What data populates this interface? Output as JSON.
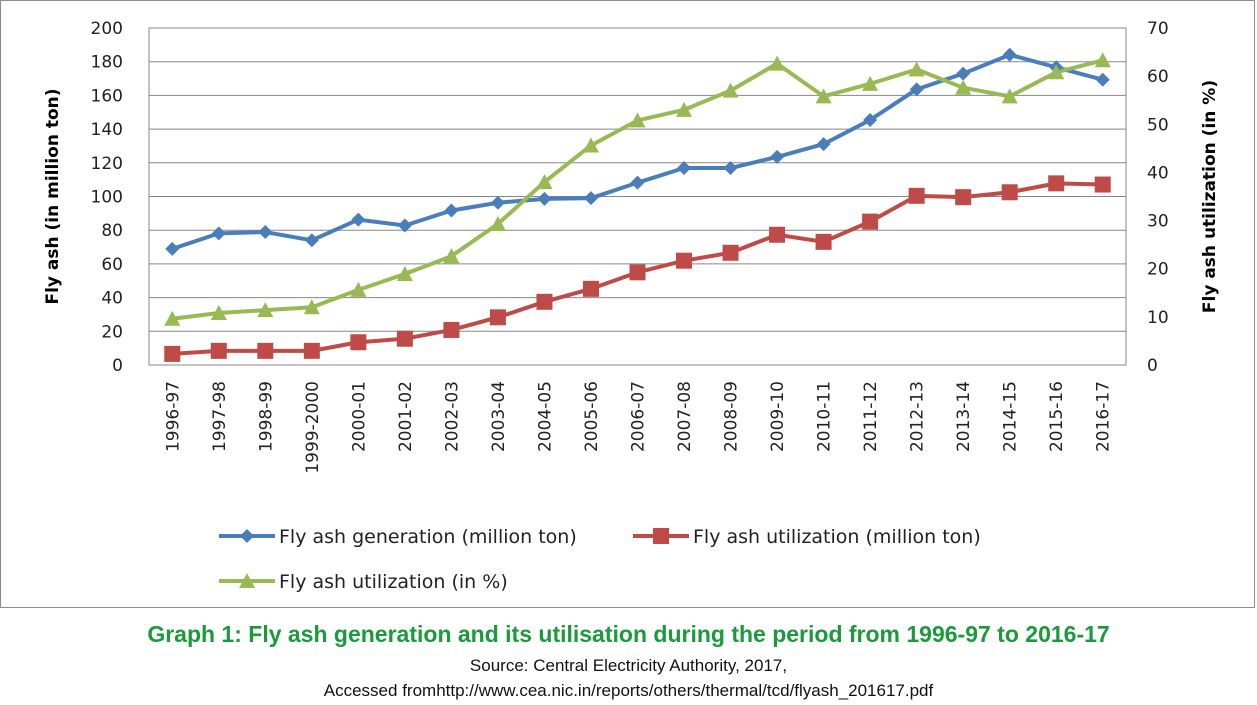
{
  "chart_data": {
    "type": "line",
    "title": "",
    "xlabel": "",
    "ylabel": "Fly ash (in million ton)",
    "y2label": "Fly ash utilization (in %)",
    "ylim": [
      0,
      200
    ],
    "y2lim": [
      0,
      70
    ],
    "yticks": [
      "0",
      "20",
      "40",
      "60",
      "80",
      "100",
      "120",
      "140",
      "160",
      "180",
      "200"
    ],
    "y2ticks": [
      "0",
      "10",
      "20",
      "30",
      "40",
      "50",
      "60",
      "70"
    ],
    "grid": true,
    "legend_position": "bottom",
    "categories": [
      "1996-97",
      "1997-98",
      "1998-99",
      "1999-2000",
      "2000-01",
      "2001-02",
      "2002-03",
      "2003-04",
      "2004-05",
      "2005-06",
      "2006-07",
      "2007-08",
      "2008-09",
      "2009-10",
      "2010-11",
      "2011-12",
      "2012-13",
      "2013-14",
      "2014-15",
      "2015-16",
      "2016-17"
    ],
    "series": [
      {
        "name": "Fly ash generation (million ton)",
        "axis": "left",
        "color": "#4a7ebb",
        "marker": "diamond",
        "values": [
          68.9,
          78.1,
          78.9,
          74.0,
          86.3,
          82.8,
          91.7,
          96.3,
          98.6,
          99.0,
          108.2,
          116.9,
          116.9,
          123.5,
          131.1,
          145.4,
          163.6,
          172.9,
          184.1,
          176.7,
          169.3
        ]
      },
      {
        "name": "Fly ash utilization (million ton)",
        "axis": "left",
        "color": "#be4b48",
        "marker": "square",
        "values": [
          6.6,
          8.4,
          8.4,
          8.4,
          13.5,
          15.6,
          20.8,
          28.3,
          37.5,
          45.2,
          55.0,
          61.9,
          66.6,
          77.3,
          73.1,
          85.1,
          100.4,
          99.6,
          102.5,
          107.8,
          107.1
        ]
      },
      {
        "name": "Fly ash utilization (in %)",
        "axis": "right",
        "color": "#98b954",
        "marker": "triangle",
        "values": [
          9.6,
          10.8,
          11.4,
          12.0,
          15.6,
          18.9,
          22.6,
          29.3,
          38.0,
          45.6,
          50.8,
          53.0,
          57.0,
          62.6,
          55.8,
          58.4,
          61.4,
          57.6,
          55.8,
          60.8,
          63.3
        ]
      }
    ]
  },
  "caption": {
    "title": "Graph 1: Fly ash generation and its utilisation during the period from 1996-97 to 2016-17",
    "source": "Source: Central Electricity Authority, 2017,",
    "accessed": "Accessed fromhttp://www.cea.nic.in/reports/others/thermal/tcd/flyash_201617.pdf"
  }
}
